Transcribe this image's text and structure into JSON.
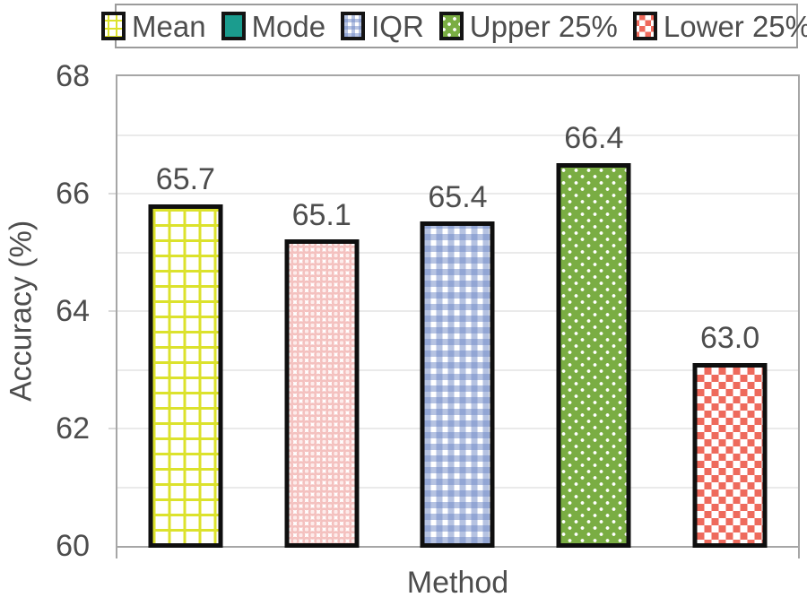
{
  "legend": {
    "items": [
      {
        "label": "Mean",
        "swatch": "yellow-grid-pattern"
      },
      {
        "label": "Mode",
        "swatch": "teal-solid"
      },
      {
        "label": "IQR",
        "swatch": "blue-check-pattern"
      },
      {
        "label": "Upper 25%",
        "swatch": "green-dots-pattern"
      },
      {
        "label": "Lower 25%",
        "swatch": "red-diamond-pattern"
      }
    ]
  },
  "chart_data": {
    "type": "bar",
    "categories": [
      "Mean",
      "Mode",
      "IQR",
      "Upper 25%",
      "Lower 25%"
    ],
    "values": [
      65.7,
      65.1,
      65.4,
      66.4,
      63.0
    ],
    "data_labels": [
      "65.7",
      "65.1",
      "65.4",
      "66.4",
      "63.0"
    ],
    "title": "",
    "xlabel": "Method",
    "ylabel": "Accuracy (%)",
    "ylim": [
      60,
      68
    ],
    "yticks": [
      60,
      62,
      64,
      66,
      68
    ],
    "ytick_labels": [
      "60",
      "62",
      "64",
      "66",
      "68"
    ],
    "minor_gridline_step": 1,
    "grid": "horizontal minor gridlines every 1 unit, light gray",
    "legend_position": "top, boxed, horizontal",
    "bar_patterns": [
      "white with yellow grid lines",
      "white with pink bubble circles",
      "white with blue gingham check",
      "green with white dots",
      "white with red diamond checkerboard"
    ],
    "colors": {
      "mean_pattern_yellow": "#dce22c",
      "mode_legend_swatch_teal": "#1b9c8e",
      "mode_bar_pink": "#f4c1bf",
      "iqr_blue": "#8ea6d8",
      "upper25_green": "#7aad43",
      "lower25_red": "#ee6a5c",
      "bar_border": "#0f0f0f",
      "text": "#4d4d4d",
      "gridline": "#eaeaea",
      "axis_frame": "#a6a6a6"
    }
  }
}
